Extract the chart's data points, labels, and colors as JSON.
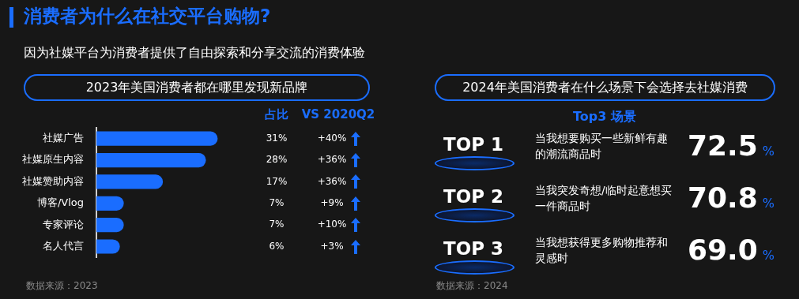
{
  "chart_data": [
    {
      "type": "other",
      "title": "消费者为什么在社交平台购物?",
      "subtitle": "因为社媒平台为消费者提供了自由探索和分享交流的消费体验",
      "color": "#1a6dff"
    },
    {
      "type": "bar",
      "orientation": "horizontal",
      "title": "2023年美国消费者都在哪里发现新品牌",
      "categories": [
        "社媒广告",
        "社媒原生内容",
        "社媒赞助内容",
        "博客/Vlog",
        "专家评论",
        "名人代言"
      ],
      "values": [
        31,
        28,
        17,
        7,
        7,
        6
      ],
      "color": "#1a6dff",
      "value_labels": [
        "31%",
        "28%",
        "17%",
        "7%",
        "7%",
        "6%"
      ],
      "annotations": [
        "占比",
        "VS 2020Q2",
        "+40%",
        "+36%",
        "+36%",
        "+9%",
        "+10%",
        "+3%",
        "数据来源：2023"
      ]
    },
    {
      "type": "other",
      "title": "2024年美国消费者在什么场景下会选择去社媒消费",
      "subtitle": "Top3 场景",
      "categories": [
        "TOP 1",
        "TOP 2",
        "TOP 3"
      ],
      "value_labels": [
        "72.5%",
        "70.8%",
        "69.0%"
      ],
      "color": "#1a6dff",
      "annotations": [
        "当我想要购买一些新鲜有趣的潮流商品时",
        "当我突发奇想/临时起意想买一件商品时",
        "当我想获得更多购物推荐和灵感时",
        "数据来源：2024"
      ]
    }
  ]
}
